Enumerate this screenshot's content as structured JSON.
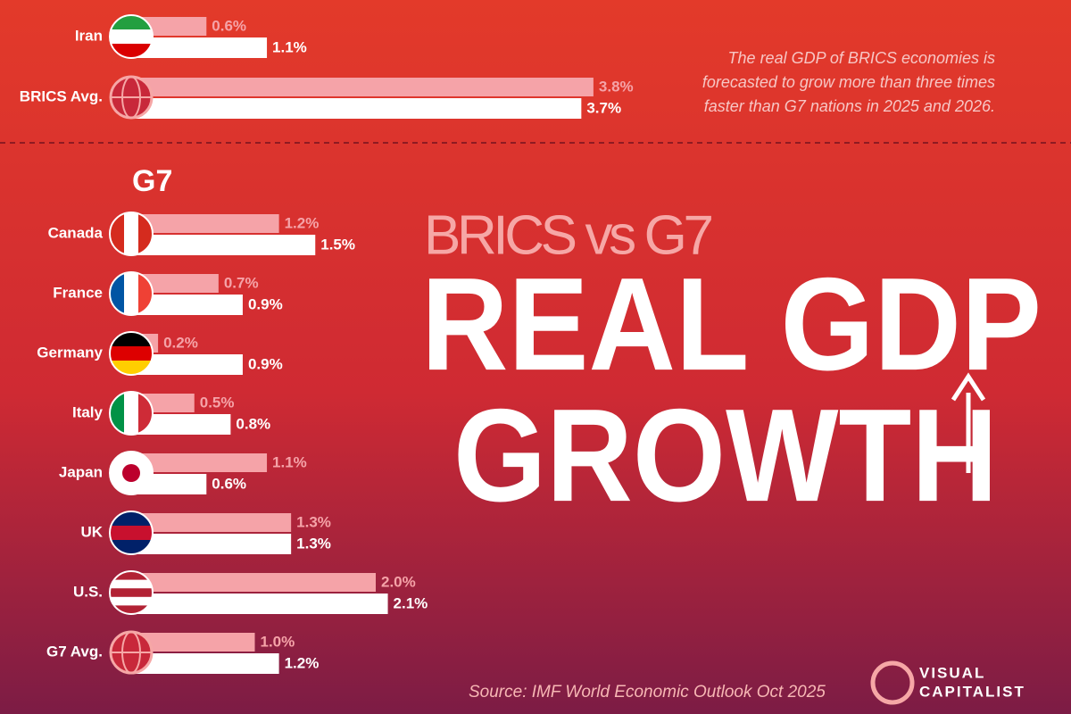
{
  "subtitle": "BRICS vs G7",
  "headline": [
    "REAL GDP",
    "GROWTH"
  ],
  "note": "The real GDP of BRICS economies is forecasted to grow more than three times faster than G7 nations in 2025 and 2026.",
  "source": "Source: IMF World Economic Outlook Oct 2025",
  "brand": [
    "VISUAL",
    "CAPITALIST"
  ],
  "chart_data": [
    {
      "type": "bar",
      "orientation": "horizontal",
      "categories": [
        "Iran",
        "BRICS Avg."
      ],
      "series": [
        {
          "color": "#f5a3a8",
          "values": [
            0.6,
            3.8
          ],
          "value_labels": [
            "0.6%",
            "3.8%"
          ]
        },
        {
          "color": "#ffffff",
          "values": [
            1.1,
            3.7
          ],
          "value_labels": [
            "1.1%",
            "3.7%"
          ]
        }
      ]
    },
    {
      "type": "bar",
      "orientation": "horizontal",
      "title": "G7",
      "categories": [
        "Canada",
        "France",
        "Germany",
        "Italy",
        "Japan",
        "UK",
        "U.S.",
        "G7 Avg."
      ],
      "series": [
        {
          "color": "#f5a3a8",
          "values": [
            1.2,
            0.7,
            0.2,
            0.5,
            1.1,
            1.3,
            2.0,
            1.0
          ],
          "value_labels": [
            "1.2%",
            "0.7%",
            "0.2%",
            "0.5%",
            "1.1%",
            "1.3%",
            "2.0%",
            "1.0%"
          ]
        },
        {
          "color": "#ffffff",
          "values": [
            1.5,
            0.9,
            0.9,
            0.8,
            0.6,
            1.3,
            2.1,
            1.2
          ],
          "value_labels": [
            "1.5%",
            "0.9%",
            "0.9%",
            "0.8%",
            "0.6%",
            "1.3%",
            "2.1%",
            "1.2%"
          ]
        }
      ]
    }
  ]
}
